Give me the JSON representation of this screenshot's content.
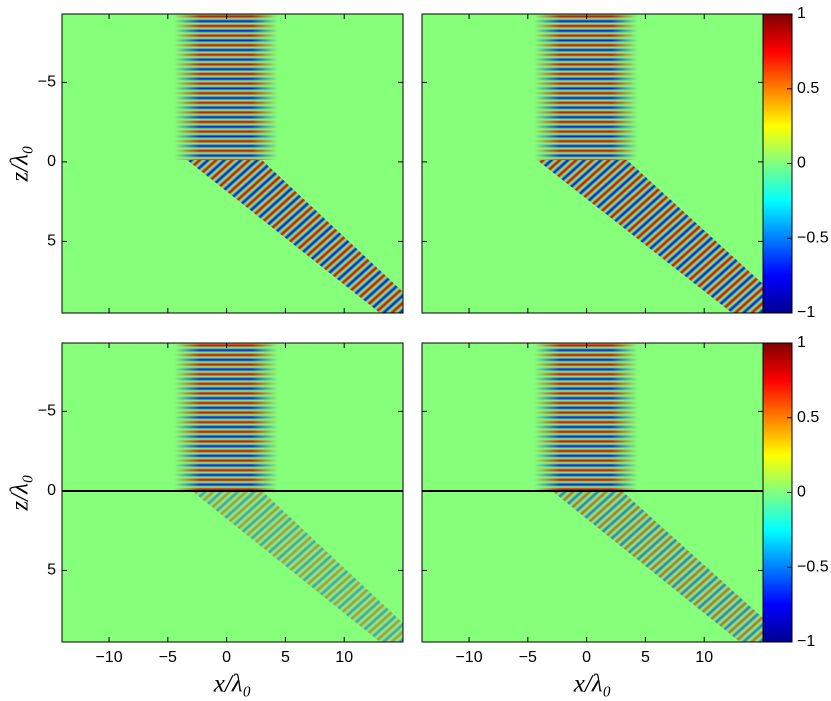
{
  "chart_data": [
    {
      "type": "field",
      "xlim": [
        -14,
        15
      ],
      "ylim": [
        9.5,
        -9.3
      ],
      "xticks": [
        -10,
        -5,
        0,
        5,
        10
      ],
      "yticks": [
        {
          "value": -5,
          "label": "−5"
        },
        0,
        5
      ],
      "ylabel": "z/λ₀"
    },
    {
      "type": "field",
      "xlim": [
        -14,
        15
      ],
      "ylim": [
        9.5,
        -9.3
      ],
      "xticks": [
        -10,
        -5,
        0,
        5,
        10
      ],
      "yticks": [
        -5,
        0,
        5
      ]
    },
    {
      "type": "field",
      "xlim": [
        -14,
        15
      ],
      "ylim": [
        9.5,
        -9.3
      ],
      "xticks": [
        {
          "value": -10,
          "label": "−10"
        },
        {
          "value": -5,
          "label": "−5"
        },
        0,
        5,
        10
      ],
      "yticks": [
        {
          "value": -5,
          "label": "−5"
        },
        0,
        5
      ],
      "xlabel": "x/λ₀",
      "ylabel": "z/λ₀"
    },
    {
      "type": "field",
      "xlim": [
        -14,
        15
      ],
      "ylim": [
        9.5,
        -9.3
      ],
      "xticks": [
        {
          "value": -10,
          "label": "−10"
        },
        {
          "value": -5,
          "label": "−5"
        },
        0,
        5,
        10
      ],
      "yticks": [
        -5,
        0,
        5
      ],
      "xlabel": "x/λ₀"
    },
    {
      "type": "colorbar",
      "colormap": "jet",
      "clim": [
        -1,
        1
      ],
      "ticks": [
        {
          "value": -1,
          "label": "−1"
        },
        {
          "value": -0.5,
          "label": "−0.5"
        },
        0,
        0.5,
        1
      ]
    },
    {
      "type": "colorbar",
      "colormap": "jet",
      "clim": [
        -1,
        1
      ],
      "ticks": [
        {
          "value": -1,
          "label": "−1"
        },
        {
          "value": -0.5,
          "label": "−0.5"
        },
        0,
        0.5,
        1
      ]
    }
  ]
}
